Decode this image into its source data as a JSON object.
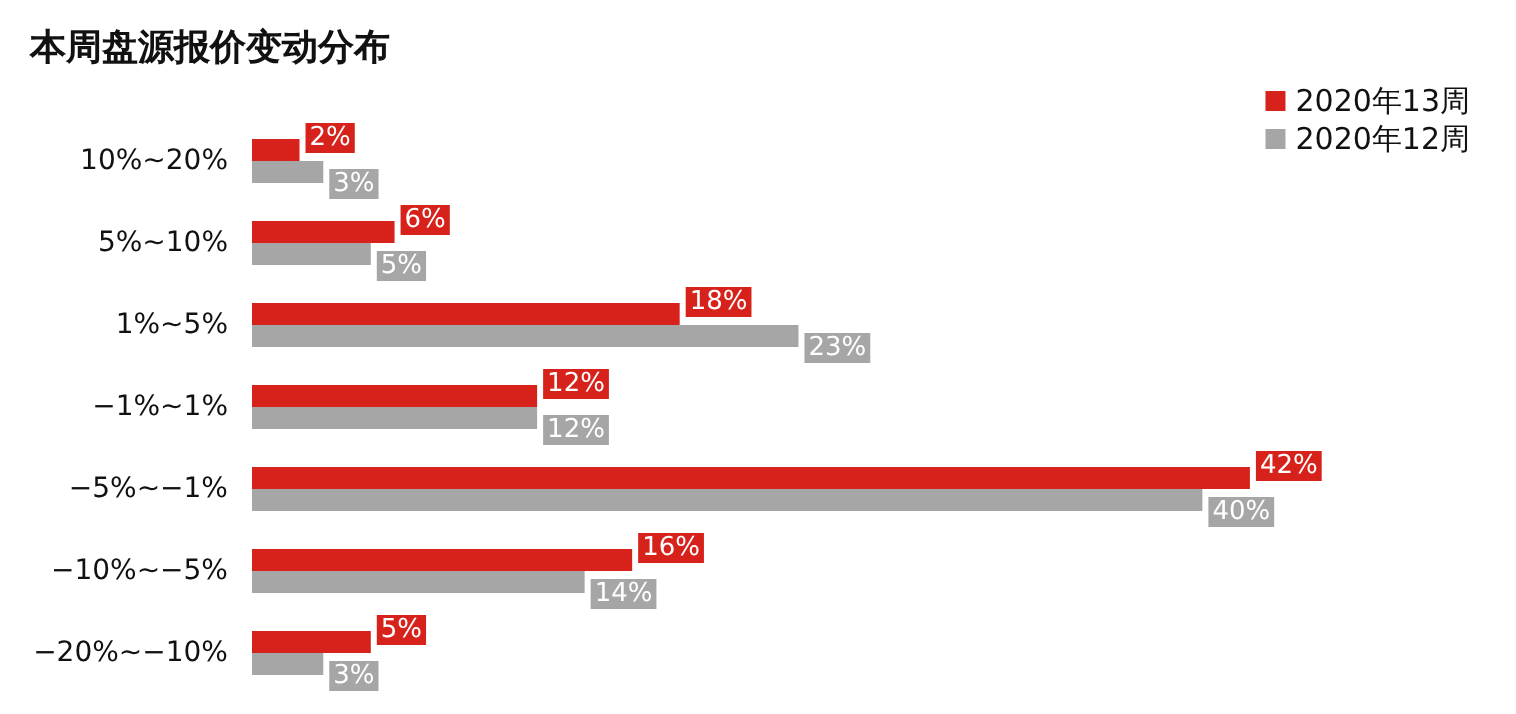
{
  "chart_data": {
    "type": "bar",
    "orientation": "horizontal",
    "title": "本周盘源报价变动分布",
    "categories": [
      "10%~20%",
      "5%~10%",
      "1%~5%",
      "−1%~1%",
      "−5%~−1%",
      "−10%~−5%",
      "−20%~−10%"
    ],
    "series": [
      {
        "name": "2020年13周",
        "color": "#d7221c",
        "values": [
          2,
          6,
          18,
          12,
          42,
          16,
          5
        ],
        "value_labels": [
          "2%",
          "6%",
          "18%",
          "12%",
          "42%",
          "16%",
          "5%"
        ]
      },
      {
        "name": "2020年12周",
        "color": "#a6a6a6",
        "values": [
          3,
          5,
          23,
          12,
          40,
          14,
          3
        ],
        "value_labels": [
          "3%",
          "5%",
          "23%",
          "12%",
          "40%",
          "14%",
          "3%"
        ]
      }
    ],
    "legend": "top right"
  }
}
